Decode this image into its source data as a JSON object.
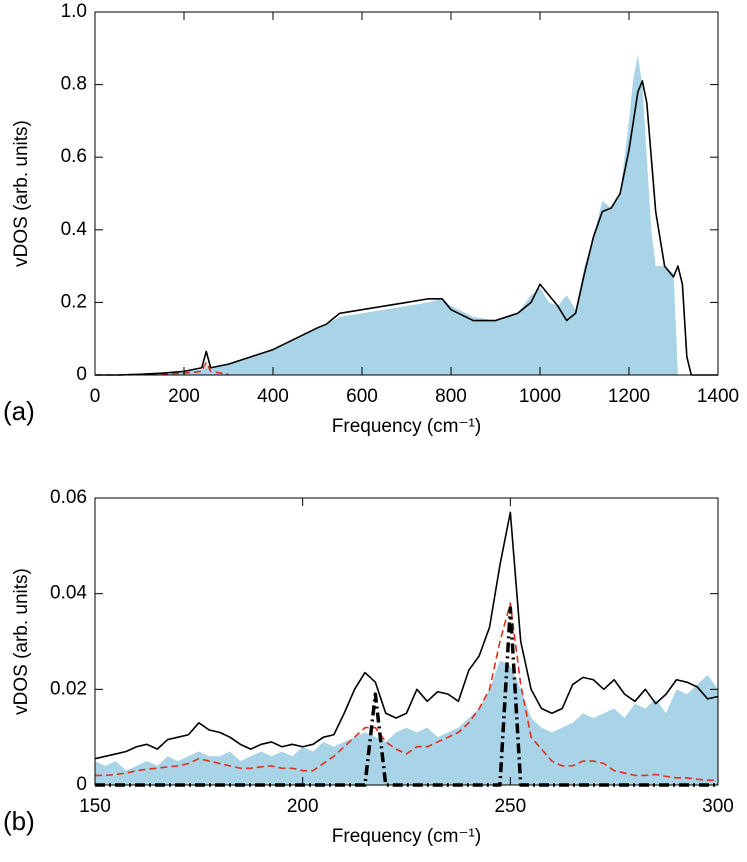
{
  "chart_data": [
    {
      "type": "line",
      "panel_label": "(a)",
      "xlabel": "Frequency (cm⁻¹)",
      "ylabel": "vDOS (arb. units)",
      "xlim": [
        0,
        1400
      ],
      "ylim": [
        0,
        1
      ],
      "xticks": [
        0,
        200,
        400,
        600,
        800,
        1000,
        1200,
        1400
      ],
      "yticks": [
        0,
        0.2,
        0.4,
        0.6,
        0.8,
        {
          "value": 1,
          "label": "1.0"
        }
      ],
      "grid": false,
      "x": [
        0,
        50,
        100,
        150,
        200,
        240,
        250,
        260,
        300,
        350,
        400,
        450,
        500,
        520,
        550,
        600,
        650,
        700,
        750,
        780,
        800,
        850,
        900,
        950,
        980,
        1000,
        1020,
        1040,
        1060,
        1080,
        1100,
        1120,
        1140,
        1160,
        1180,
        1200,
        1210,
        1220,
        1230,
        1240,
        1250,
        1260,
        1280,
        1300,
        1310,
        1320,
        1330,
        1340,
        1400
      ],
      "series": [
        {
          "style": "area",
          "color": "#a9d3e6",
          "values": [
            0,
            0,
            0.002,
            0.005,
            0.01,
            0.015,
            0.02,
            0.02,
            0.03,
            0.05,
            0.07,
            0.1,
            0.13,
            0.14,
            0.16,
            0.17,
            0.18,
            0.19,
            0.2,
            0.21,
            0.19,
            0.16,
            0.15,
            0.17,
            0.22,
            0.24,
            0.2,
            0.19,
            0.22,
            0.18,
            0.3,
            0.38,
            0.48,
            0.46,
            0.5,
            0.7,
            0.82,
            0.88,
            0.8,
            0.6,
            0.4,
            0.3,
            0.3,
            0.28,
            0,
            0,
            0,
            0,
            0
          ]
        },
        {
          "style": "dashed",
          "color": "#e03020",
          "values": [
            0,
            0,
            0.001,
            0.003,
            0.005,
            0.01,
            0.035,
            0.01,
            0.002,
            null,
            null,
            null,
            null,
            null,
            null,
            null,
            null,
            null,
            null,
            null,
            null,
            null,
            null,
            null,
            null,
            null,
            null,
            null,
            null,
            null,
            null,
            null,
            null,
            null,
            null,
            null,
            null,
            null,
            null,
            null,
            null,
            null,
            null,
            null,
            null,
            null,
            null,
            null,
            null
          ]
        },
        {
          "style": "solid",
          "color": "#000000",
          "values": [
            0,
            0,
            0.002,
            0.005,
            0.01,
            0.02,
            0.065,
            0.02,
            0.03,
            0.05,
            0.07,
            0.1,
            0.13,
            0.14,
            0.17,
            0.18,
            0.19,
            0.2,
            0.21,
            0.21,
            0.18,
            0.15,
            0.15,
            0.17,
            0.2,
            0.25,
            0.22,
            0.19,
            0.15,
            0.17,
            0.28,
            0.38,
            0.45,
            0.46,
            0.5,
            0.62,
            0.7,
            0.78,
            0.81,
            0.75,
            0.6,
            0.45,
            0.3,
            0.27,
            0.3,
            0.25,
            0.05,
            0,
            0
          ]
        }
      ]
    },
    {
      "type": "line",
      "panel_label": "(b)",
      "xlabel": "Frequency (cm⁻¹)",
      "ylabel": "vDOS (arb. units)",
      "xlim": [
        150,
        300
      ],
      "ylim": [
        0,
        0.06
      ],
      "xticks": [
        150,
        200,
        250,
        300
      ],
      "yticks": [
        0,
        0.02,
        0.04,
        0.06
      ],
      "grid": false,
      "x": [
        150,
        152.5,
        155,
        157.5,
        160,
        162.5,
        165,
        167.5,
        170,
        172.5,
        175,
        177.5,
        180,
        182.5,
        185,
        187.5,
        190,
        192.5,
        195,
        197.5,
        200,
        202.5,
        205,
        207.5,
        210,
        212.5,
        215,
        217.5,
        220,
        222.5,
        225,
        227.5,
        230,
        232.5,
        235,
        237.5,
        240,
        242.5,
        245,
        247.5,
        250,
        252.5,
        255,
        257.5,
        260,
        262.5,
        265,
        267.5,
        270,
        272.5,
        275,
        277.5,
        280,
        282.5,
        285,
        287.5,
        290,
        292.5,
        295,
        297.5,
        300
      ],
      "series": [
        {
          "style": "area",
          "color": "#a9d3e6",
          "values": [
            0.005,
            0.004,
            0.005,
            0.003,
            0.004,
            0.005,
            0.004,
            0.006,
            0.005,
            0.006,
            0.007,
            0.006,
            0.006,
            0.007,
            0.005,
            0.006,
            0.007,
            0.006,
            0.007,
            0.006,
            0.008,
            0.007,
            0.009,
            0.008,
            0.009,
            0.01,
            0.011,
            0.01,
            0.009,
            0.011,
            0.012,
            0.011,
            0.012,
            0.01,
            0.011,
            0.012,
            0.014,
            0.016,
            0.02,
            0.026,
            0.025,
            0.02,
            0.014,
            0.012,
            0.011,
            0.012,
            0.013,
            0.015,
            0.014,
            0.015,
            0.016,
            0.014,
            0.017,
            0.016,
            0.018,
            0.015,
            0.02,
            0.019,
            0.021,
            0.023,
            0.02
          ]
        },
        {
          "style": "dashed",
          "color": "#e03020",
          "values": [
            0.002,
            0.002,
            0.0022,
            0.0025,
            0.003,
            0.0033,
            0.0035,
            0.0038,
            0.004,
            0.0045,
            0.0055,
            0.005,
            0.0045,
            0.004,
            0.0035,
            0.0035,
            0.0038,
            0.004,
            0.0035,
            0.0035,
            0.003,
            0.003,
            0.0045,
            0.006,
            0.008,
            0.01,
            0.012,
            0.012,
            0.009,
            0.0075,
            0.0065,
            0.008,
            0.008,
            0.009,
            0.01,
            0.011,
            0.013,
            0.016,
            0.02,
            0.03,
            0.038,
            0.021,
            0.01,
            0.0075,
            0.005,
            0.004,
            0.004,
            0.005,
            0.005,
            0.0045,
            0.003,
            0.0025,
            0.002,
            0.002,
            0.0022,
            0.0018,
            0.0015,
            0.0015,
            0.0012,
            0.001,
            0.001
          ]
        },
        {
          "style": "solid",
          "color": "#000000",
          "values": [
            0.0055,
            0.006,
            0.0065,
            0.007,
            0.008,
            0.0085,
            0.0075,
            0.0095,
            0.01,
            0.0105,
            0.013,
            0.0115,
            0.011,
            0.01,
            0.0085,
            0.0075,
            0.0085,
            0.009,
            0.008,
            0.0085,
            0.008,
            0.0085,
            0.01,
            0.0105,
            0.015,
            0.02,
            0.0235,
            0.0215,
            0.015,
            0.014,
            0.015,
            0.02,
            0.0175,
            0.0195,
            0.019,
            0.0175,
            0.024,
            0.027,
            0.033,
            0.046,
            0.057,
            0.03,
            0.02,
            0.016,
            0.015,
            0.016,
            0.021,
            0.0225,
            0.022,
            0.02,
            0.022,
            0.019,
            0.0175,
            0.02,
            0.017,
            0.019,
            0.022,
            0.0215,
            0.0205,
            0.018,
            0.0185
          ]
        },
        {
          "style": "dashdot",
          "color": "#000000",
          "values": [
            0,
            0,
            0,
            0,
            0,
            0,
            0,
            0,
            0,
            0,
            0,
            0,
            0,
            0,
            0,
            0,
            0,
            0,
            0,
            0,
            0,
            0,
            0,
            0,
            0,
            0,
            0,
            0.019,
            0,
            0,
            0,
            0,
            0,
            0,
            0,
            0,
            0,
            0,
            0,
            0,
            0.037,
            0,
            0,
            0,
            0,
            0,
            0,
            0,
            0,
            0,
            0,
            0,
            0,
            0,
            0,
            0,
            0,
            0,
            0,
            0,
            0
          ]
        }
      ]
    }
  ]
}
